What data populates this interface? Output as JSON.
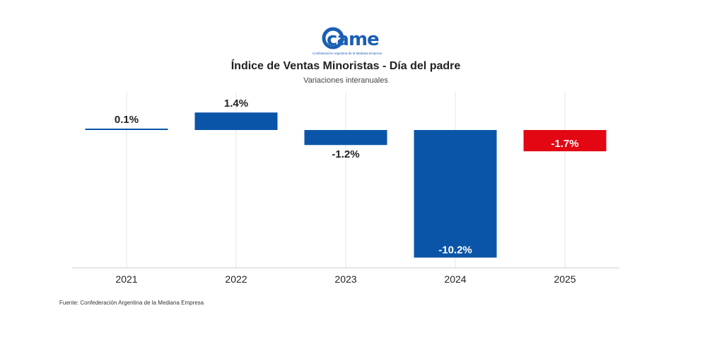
{
  "logo": {
    "wordmark": "came",
    "tagline": "Confederación Argentina de la Mediana Empresa",
    "color": "#1a5fb4"
  },
  "chart_data": {
    "type": "bar",
    "title": "Índice de Ventas Minoristas - Día del padre",
    "subtitle": "Variaciones interanuales",
    "xlabel": "",
    "ylabel": "",
    "categories": [
      "2021",
      "2022",
      "2023",
      "2024",
      "2025"
    ],
    "values": [
      0.1,
      1.4,
      -1.2,
      -10.2,
      -1.7
    ],
    "data_labels": [
      "0.1%",
      "1.4%",
      "-1.2%",
      "-10.2%",
      "-1.7%"
    ],
    "colors": [
      "#0a55a8",
      "#0a55a8",
      "#0a55a8",
      "#0a55a8",
      "#e30613"
    ],
    "ylim": [
      -11,
      2
    ],
    "grid": "vertical",
    "legend": "none"
  },
  "source": "Fuente: Confederación Argentina de la Mediana Empresa"
}
